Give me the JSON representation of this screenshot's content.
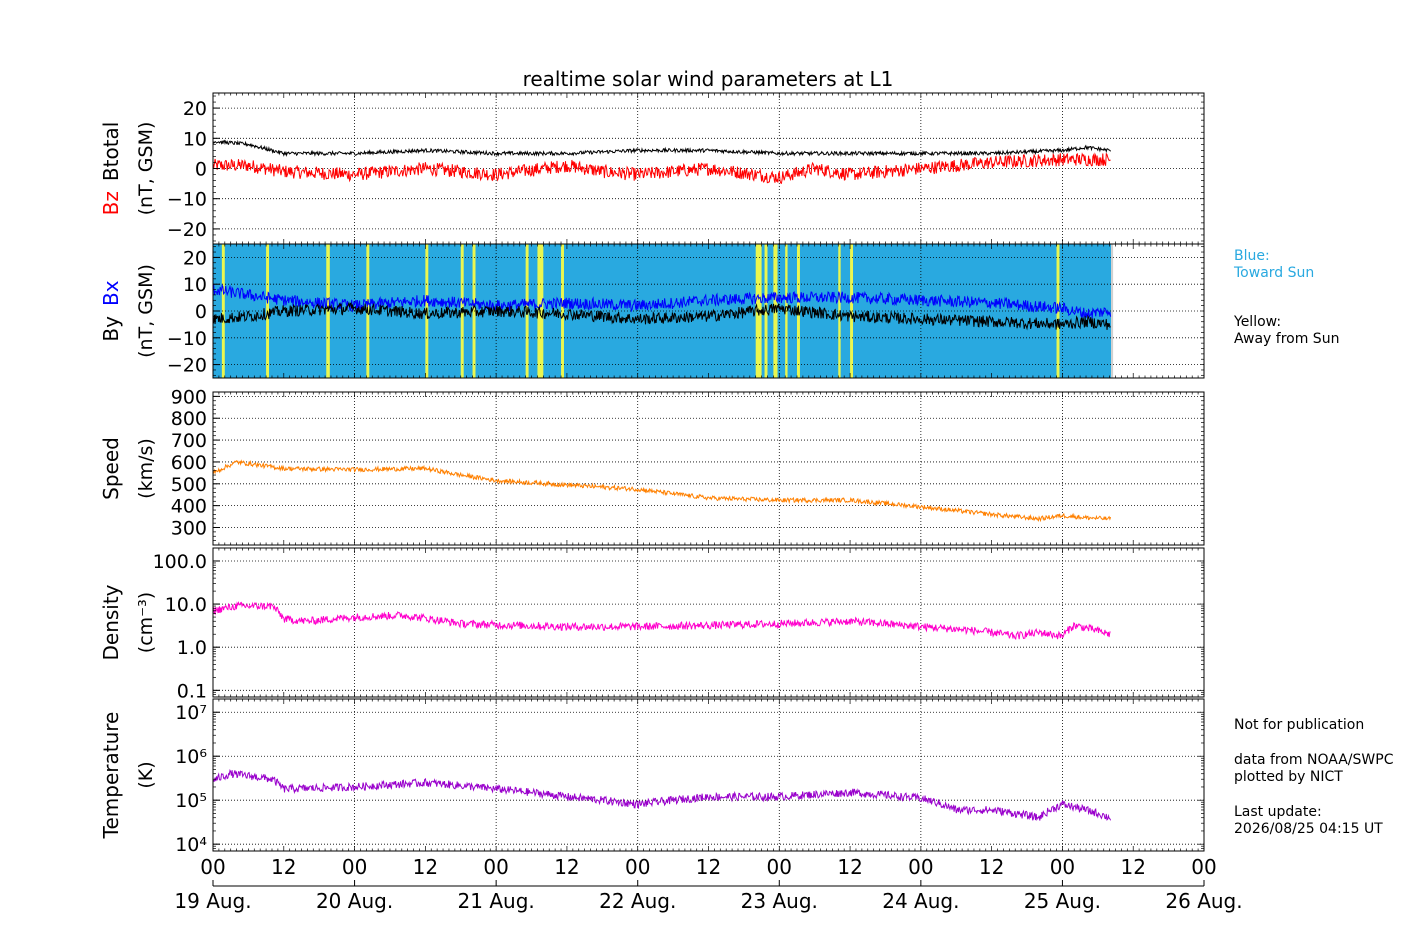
{
  "title": "realtime solar wind parameters at L1",
  "notes": {
    "blue": "Blue:\nToward Sun",
    "yellow": "Yellow:\nAway from Sun",
    "publication": "Not for publication",
    "source": "data from NOAA/SWPC\nplotted by NICT",
    "update_label": "Last update:",
    "update_time": "2026/08/25 04:15 UT"
  },
  "colors": {
    "toward_sun": "#29a9e0",
    "away_from_sun": "#ffff40",
    "bz": "#ff0000",
    "btotal": "#000000",
    "bx": "#0000ff",
    "by": "#000000",
    "speed": "#ff8000",
    "density": "#ff00cc",
    "temperature": "#9900cc"
  },
  "chart_data": {
    "type": "line",
    "time_axis": {
      "start": "2026-08-19 00:00",
      "end": "2026-08-26 00:00",
      "data_end": "2026-08-25 04:15",
      "tick_labels": [
        "00",
        "12",
        "00",
        "12",
        "00",
        "12",
        "00",
        "12",
        "00",
        "12",
        "00",
        "12",
        "00",
        "12",
        "00"
      ],
      "date_labels": [
        "19 Aug.",
        "20 Aug.",
        "21 Aug.",
        "22 Aug.",
        "23 Aug.",
        "24 Aug.",
        "25 Aug.",
        "26 Aug."
      ]
    },
    "panels": [
      {
        "id": "bz_btotal",
        "ylabel_parts": [
          "Bz",
          "Btotal"
        ],
        "yunits": "(nT, GSM)",
        "ylim": [
          -25,
          25
        ],
        "yticks": [
          "20",
          "10",
          "0",
          "−10",
          "−20"
        ],
        "yticks_values": [
          20,
          10,
          0,
          -10,
          -20
        ],
        "grid": true,
        "series": [
          {
            "name": "Bz",
            "color_key": "bz",
            "x_hours": [
              0,
              6,
              12,
              24,
              36,
              48,
              60,
              66,
              72,
              84,
              96,
              102,
              108,
              120,
              132,
              144,
              152
            ],
            "values": [
              1,
              1,
              -1,
              -2,
              0,
              -2,
              1,
              -1,
              -2,
              0,
              -3,
              0,
              -2,
              0,
              2,
              3,
              3
            ]
          },
          {
            "name": "Btotal",
            "color_key": "btotal",
            "x_hours": [
              0,
              6,
              12,
              24,
              36,
              48,
              60,
              72,
              84,
              96,
              108,
              120,
              132,
              144,
              148,
              152
            ],
            "values": [
              9,
              8,
              5,
              5,
              6,
              5,
              5,
              6,
              6,
              5,
              5,
              5,
              5,
              6,
              7,
              6
            ]
          }
        ]
      },
      {
        "id": "bx_by",
        "ylabel_parts": [
          "By",
          "Bx"
        ],
        "yunits": "(nT, GSM)",
        "ylim": [
          -25,
          25
        ],
        "yticks": [
          "20",
          "10",
          "0",
          "−10",
          "−20"
        ],
        "yticks_values": [
          20,
          10,
          0,
          -10,
          -20
        ],
        "grid": true,
        "sector_background": {
          "default": "toward",
          "away_intervals_hours": [
            [
              1.5,
              2
            ],
            [
              9,
              9.5
            ],
            [
              19.2,
              19.8
            ],
            [
              26,
              26.5
            ],
            [
              36,
              36.5
            ],
            [
              42,
              42.5
            ],
            [
              44,
              44.5
            ],
            [
              53,
              53.5
            ],
            [
              55,
              56
            ],
            [
              59,
              59.5
            ],
            [
              92,
              93
            ],
            [
              93.5,
              94
            ],
            [
              95,
              95.7
            ],
            [
              97,
              97.4
            ],
            [
              99,
              99.5
            ],
            [
              106,
              106.4
            ],
            [
              108,
              108.5
            ],
            [
              143,
              143.5
            ]
          ]
        },
        "series": [
          {
            "name": "Bx",
            "color_key": "bx",
            "x_hours": [
              0,
              6,
              12,
              24,
              36,
              48,
              60,
              72,
              84,
              96,
              108,
              120,
              132,
              144,
              148,
              152
            ],
            "values": [
              8,
              6,
              4,
              2,
              4,
              2,
              3,
              2,
              4,
              5,
              5,
              4,
              3,
              1,
              -1,
              0
            ]
          },
          {
            "name": "By",
            "color_key": "by",
            "x_hours": [
              0,
              6,
              12,
              24,
              36,
              48,
              60,
              72,
              84,
              96,
              108,
              120,
              132,
              144,
              148,
              152
            ],
            "values": [
              -3,
              -2,
              0,
              1,
              -1,
              0,
              -1,
              -3,
              -2,
              1,
              -2,
              -3,
              -4,
              -5,
              -4,
              -5
            ]
          }
        ]
      },
      {
        "id": "speed",
        "ylabel_parts": [
          "Speed"
        ],
        "yunits": "(km/s)",
        "ylim": [
          220,
          920
        ],
        "yticks": [
          "900",
          "800",
          "700",
          "600",
          "500",
          "400",
          "300"
        ],
        "yticks_values": [
          900,
          800,
          700,
          600,
          500,
          400,
          300
        ],
        "grid": true,
        "series": [
          {
            "name": "Speed",
            "color_key": "speed",
            "x_hours": [
              0,
              4,
              12,
              24,
              36,
              42,
              48,
              60,
              72,
              84,
              96,
              108,
              120,
              132,
              140,
              144,
              148,
              152
            ],
            "values": [
              550,
              600,
              570,
              565,
              570,
              540,
              515,
              495,
              475,
              435,
              425,
              425,
              395,
              360,
              340,
              355,
              345,
              340
            ]
          }
        ]
      },
      {
        "id": "density",
        "ylabel_parts": [
          "Density"
        ],
        "yunits": "(cm⁻³)",
        "log_scale": true,
        "ylim": [
          0.07,
          200
        ],
        "yticks": [
          "100.0",
          "10.0",
          "1.0",
          "0.1"
        ],
        "yticks_values": [
          100,
          10,
          1,
          0.1
        ],
        "grid": true,
        "series": [
          {
            "name": "Density",
            "color_key": "density",
            "x_hours": [
              0,
              4,
              10,
              12,
              16,
              24,
              32,
              42,
              48,
              60,
              72,
              84,
              96,
              108,
              120,
              128,
              132,
              136,
              140,
              144,
              146,
              152
            ],
            "values": [
              7,
              9,
              9,
              4.5,
              4,
              5,
              5.5,
              3.5,
              3.3,
              3,
              3,
              3.2,
              3.5,
              4,
              3,
              2.5,
              2.2,
              1.8,
              2.2,
              1.8,
              3.2,
              2
            ]
          }
        ]
      },
      {
        "id": "temperature",
        "ylabel_parts": [
          "Temperature"
        ],
        "yunits": "(K)",
        "log_scale": true,
        "ylim": [
          7000,
          20000000
        ],
        "yticks": [
          "10⁷",
          "10⁶",
          "10⁵",
          "10⁴"
        ],
        "yticks_values": [
          10000000,
          1000000,
          100000,
          10000
        ],
        "grid": true,
        "series": [
          {
            "name": "Temperature",
            "color_key": "temperature",
            "x_hours": [
              0,
              3,
              10,
              12,
              24,
              36,
              48,
              60,
              72,
              84,
              96,
              108,
              120,
              126,
              132,
              136,
              140,
              144,
              148,
              152
            ],
            "values": [
              280000,
              400000,
              300000,
              180000,
              200000,
              250000,
              180000,
              120000,
              80000,
              120000,
              120000,
              150000,
              110000,
              60000,
              60000,
              50000,
              40000,
              80000,
              60000,
              40000
            ]
          }
        ]
      }
    ]
  }
}
